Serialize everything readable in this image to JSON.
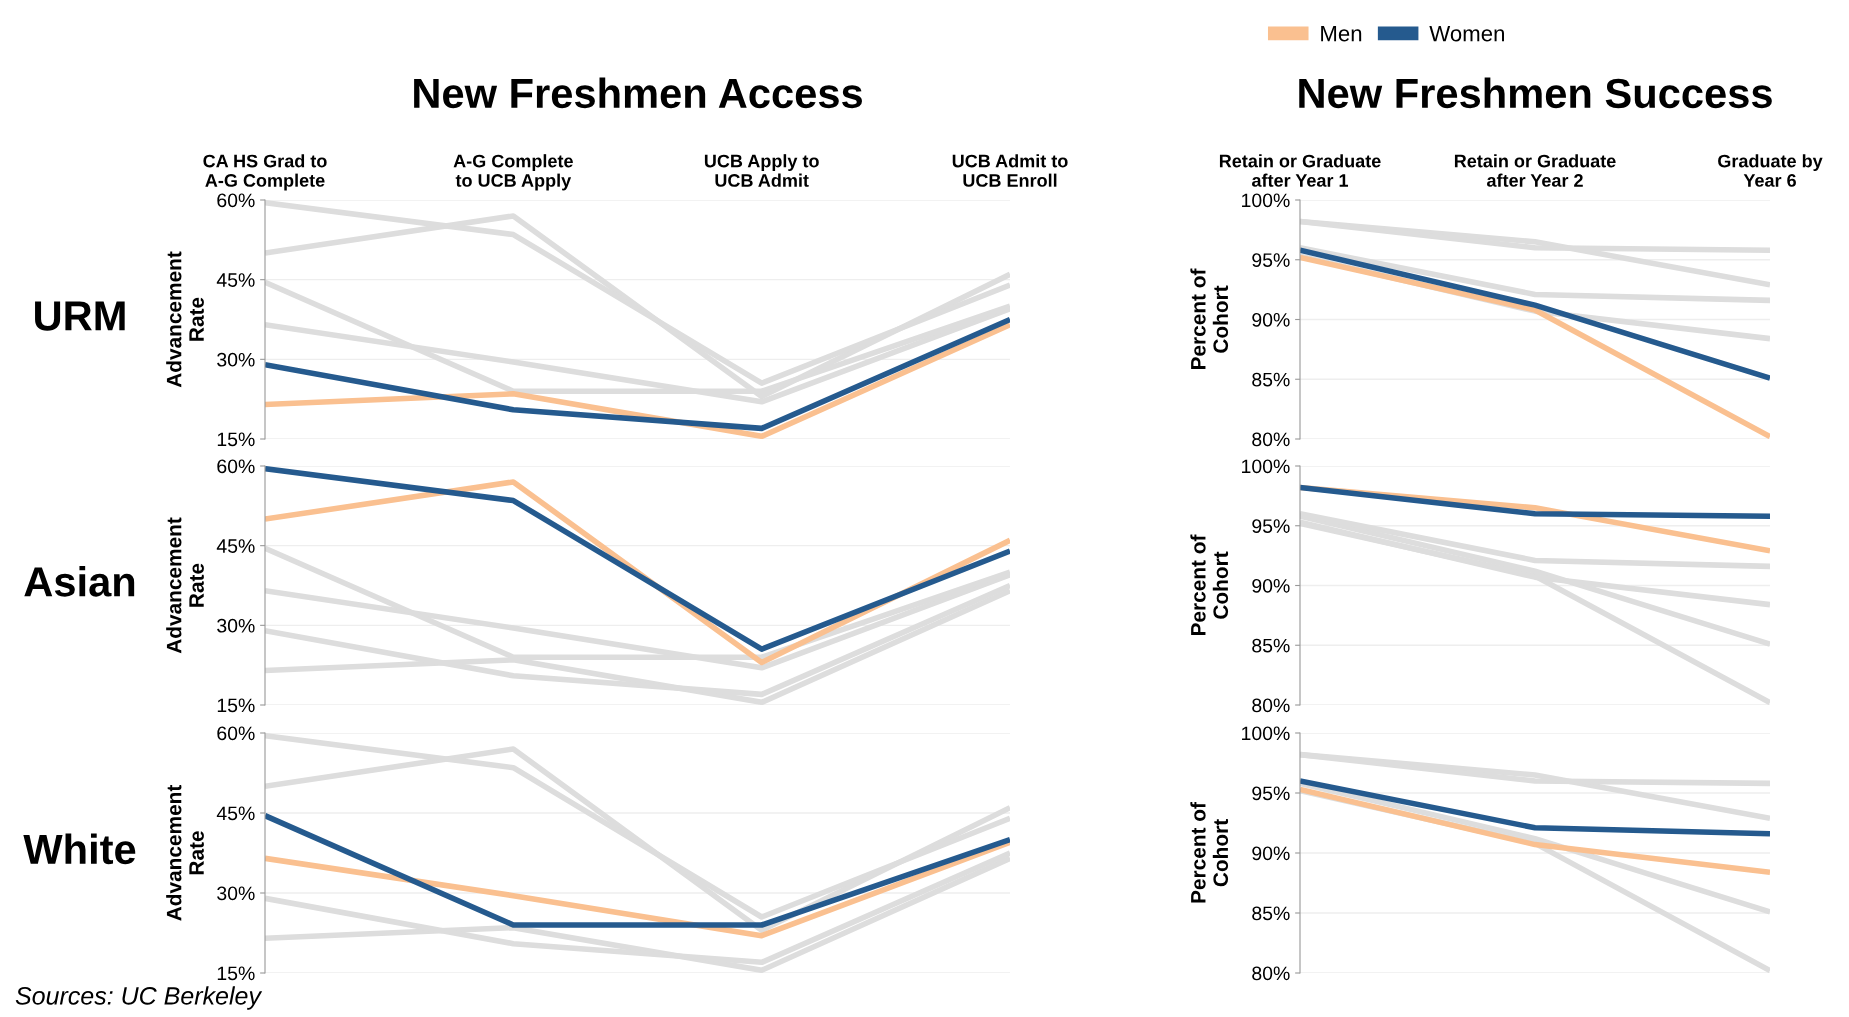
{
  "chart_data": [
    {
      "type": "line",
      "title": "New Freshmen Access",
      "ylabel": "Advancement\nRate",
      "annotations": [
        "URM"
      ],
      "grid": "y",
      "line_style": "solid",
      "marker": "none",
      "legend": "top right",
      "categories": [
        "CA HS Grad to\nA-G Complete",
        "A-G Complete\nto UCB Apply",
        "UCB Apply to\nUCB Admit",
        "UCB Admit to\nUCB Enroll"
      ],
      "ylim": [
        15,
        60
      ],
      "yticks": [
        {
          "value": 15,
          "label": "15%"
        },
        {
          "value": 30,
          "label": "30%"
        },
        {
          "value": 45,
          "label": "45%"
        },
        {
          "value": 60,
          "label": "60%"
        }
      ],
      "series": [
        {
          "color": "#dddddd",
          "values": [
            50,
            57,
            23,
            46
          ]
        },
        {
          "color": "#dddddd",
          "values": [
            59.5,
            53.5,
            25.5,
            44
          ]
        },
        {
          "color": "#dddddd",
          "values": [
            36.5,
            29.5,
            22,
            39.5
          ]
        },
        {
          "color": "#dddddd",
          "values": [
            44.5,
            24,
            24,
            40
          ]
        },
        {
          "name": "Men",
          "color": "#fac090",
          "values": [
            21.5,
            23.5,
            15.5,
            36.5
          ]
        },
        {
          "name": "Women",
          "color": "#255a8e",
          "values": [
            29,
            20.5,
            17,
            37.5
          ]
        }
      ]
    },
    {
      "type": "line",
      "title": "New Freshmen Success",
      "ylabel": "Percent of\nCohort",
      "grid": "y",
      "line_style": "solid",
      "marker": "none",
      "categories": [
        "Retain or Graduate\nafter Year 1",
        "Retain or Graduate\nafter Year 2",
        "Graduate by\nYear 6"
      ],
      "ylim": [
        80,
        100
      ],
      "yticks": [
        {
          "value": 80,
          "label": "80%"
        },
        {
          "value": 85,
          "label": "85%"
        },
        {
          "value": 90,
          "label": "90%"
        },
        {
          "value": 95,
          "label": "95%"
        },
        {
          "value": 100,
          "label": "100%"
        }
      ],
      "series": [
        {
          "color": "#dddddd",
          "values": [
            98.2,
            96.5,
            92.9
          ]
        },
        {
          "color": "#dddddd",
          "values": [
            98.2,
            96.0,
            95.8
          ]
        },
        {
          "color": "#dddddd",
          "values": [
            95.3,
            90.7,
            88.4
          ]
        },
        {
          "color": "#dddddd",
          "values": [
            96.0,
            92.1,
            91.6
          ]
        },
        {
          "color": "#fac090",
          "values": [
            95.2,
            90.8,
            80.2
          ]
        },
        {
          "color": "#255a8e",
          "values": [
            95.8,
            91.2,
            85.1
          ]
        }
      ]
    },
    {
      "type": "line",
      "ylabel": "Advancement\nRate",
      "annotations": [
        "Asian"
      ],
      "grid": "y",
      "line_style": "solid",
      "marker": "none",
      "tick_labels": "y",
      "categories": [
        null,
        null,
        null,
        null
      ],
      "ylim": [
        15,
        60
      ],
      "yticks": [
        {
          "value": 15,
          "label": "15%"
        },
        {
          "value": 30,
          "label": "30%"
        },
        {
          "value": 45,
          "label": "45%"
        },
        {
          "value": 60,
          "label": "60%"
        }
      ],
      "series": [
        {
          "color": "#dddddd",
          "values": [
            21.5,
            23.5,
            15.5,
            36.5
          ]
        },
        {
          "color": "#dddddd",
          "values": [
            29,
            20.5,
            17,
            37.5
          ]
        },
        {
          "color": "#dddddd",
          "values": [
            36.5,
            29.5,
            22,
            39.5
          ]
        },
        {
          "color": "#dddddd",
          "values": [
            44.5,
            24,
            24,
            40
          ]
        },
        {
          "color": "#fac090",
          "values": [
            50,
            57,
            23,
            46
          ]
        },
        {
          "color": "#255a8e",
          "values": [
            59.5,
            53.5,
            25.5,
            44
          ]
        }
      ]
    },
    {
      "type": "line",
      "ylabel": "Percent of\nCohort",
      "grid": "y",
      "line_style": "solid",
      "marker": "none",
      "tick_labels": "y",
      "categories": [
        null,
        null,
        null
      ],
      "ylim": [
        80,
        100
      ],
      "yticks": [
        {
          "value": 80,
          "label": "80%"
        },
        {
          "value": 85,
          "label": "85%"
        },
        {
          "value": 90,
          "label": "90%"
        },
        {
          "value": 95,
          "label": "95%"
        },
        {
          "value": 100,
          "label": "100%"
        }
      ],
      "series": [
        {
          "color": "#dddddd",
          "values": [
            95.2,
            90.8,
            80.2
          ]
        },
        {
          "color": "#dddddd",
          "values": [
            95.8,
            91.2,
            85.1
          ]
        },
        {
          "color": "#dddddd",
          "values": [
            95.3,
            90.7,
            88.4
          ]
        },
        {
          "color": "#dddddd",
          "values": [
            96.0,
            92.1,
            91.6
          ]
        },
        {
          "color": "#fac090",
          "values": [
            98.2,
            96.5,
            92.9
          ]
        },
        {
          "color": "#255a8e",
          "values": [
            98.2,
            96.0,
            95.8
          ]
        }
      ]
    },
    {
      "type": "line",
      "ylabel": "Advancement\nRate",
      "annotations": [
        "White",
        "Sources: UC Berkeley"
      ],
      "grid": "y",
      "line_style": "solid",
      "marker": "none",
      "tick_labels": "y",
      "categories": [
        null,
        null,
        null,
        null
      ],
      "ylim": [
        15,
        60
      ],
      "yticks": [
        {
          "value": 15,
          "label": "15%"
        },
        {
          "value": 30,
          "label": "30%"
        },
        {
          "value": 45,
          "label": "45%"
        },
        {
          "value": 60,
          "label": "60%"
        }
      ],
      "series": [
        {
          "color": "#dddddd",
          "values": [
            21.5,
            23.5,
            15.5,
            36.5
          ]
        },
        {
          "color": "#dddddd",
          "values": [
            29,
            20.5,
            17,
            37.5
          ]
        },
        {
          "color": "#dddddd",
          "values": [
            50,
            57,
            23,
            46
          ]
        },
        {
          "color": "#dddddd",
          "values": [
            59.5,
            53.5,
            25.5,
            44
          ]
        },
        {
          "color": "#fac090",
          "values": [
            36.5,
            29.5,
            22,
            39.5
          ]
        },
        {
          "color": "#255a8e",
          "values": [
            44.5,
            24,
            24,
            40
          ]
        }
      ]
    },
    {
      "type": "line",
      "ylabel": "Percent of\nCohort",
      "grid": "y",
      "line_style": "solid",
      "marker": "none",
      "tick_labels": "y",
      "categories": [
        null,
        null,
        null
      ],
      "ylim": [
        80,
        100
      ],
      "yticks": [
        {
          "value": 80,
          "label": "80%"
        },
        {
          "value": 85,
          "label": "85%"
        },
        {
          "value": 90,
          "label": "90%"
        },
        {
          "value": 95,
          "label": "95%"
        },
        {
          "value": 100,
          "label": "100%"
        }
      ],
      "series": [
        {
          "color": "#dddddd",
          "values": [
            95.2,
            90.8,
            80.2
          ]
        },
        {
          "color": "#dddddd",
          "values": [
            95.8,
            91.2,
            85.1
          ]
        },
        {
          "color": "#dddddd",
          "values": [
            98.2,
            96.5,
            92.9
          ]
        },
        {
          "color": "#dddddd",
          "values": [
            98.2,
            96.0,
            95.8
          ]
        },
        {
          "color": "#fac090",
          "values": [
            95.3,
            90.7,
            88.4
          ]
        },
        {
          "color": "#255a8e",
          "values": [
            96.0,
            92.1,
            91.6
          ]
        }
      ]
    }
  ]
}
